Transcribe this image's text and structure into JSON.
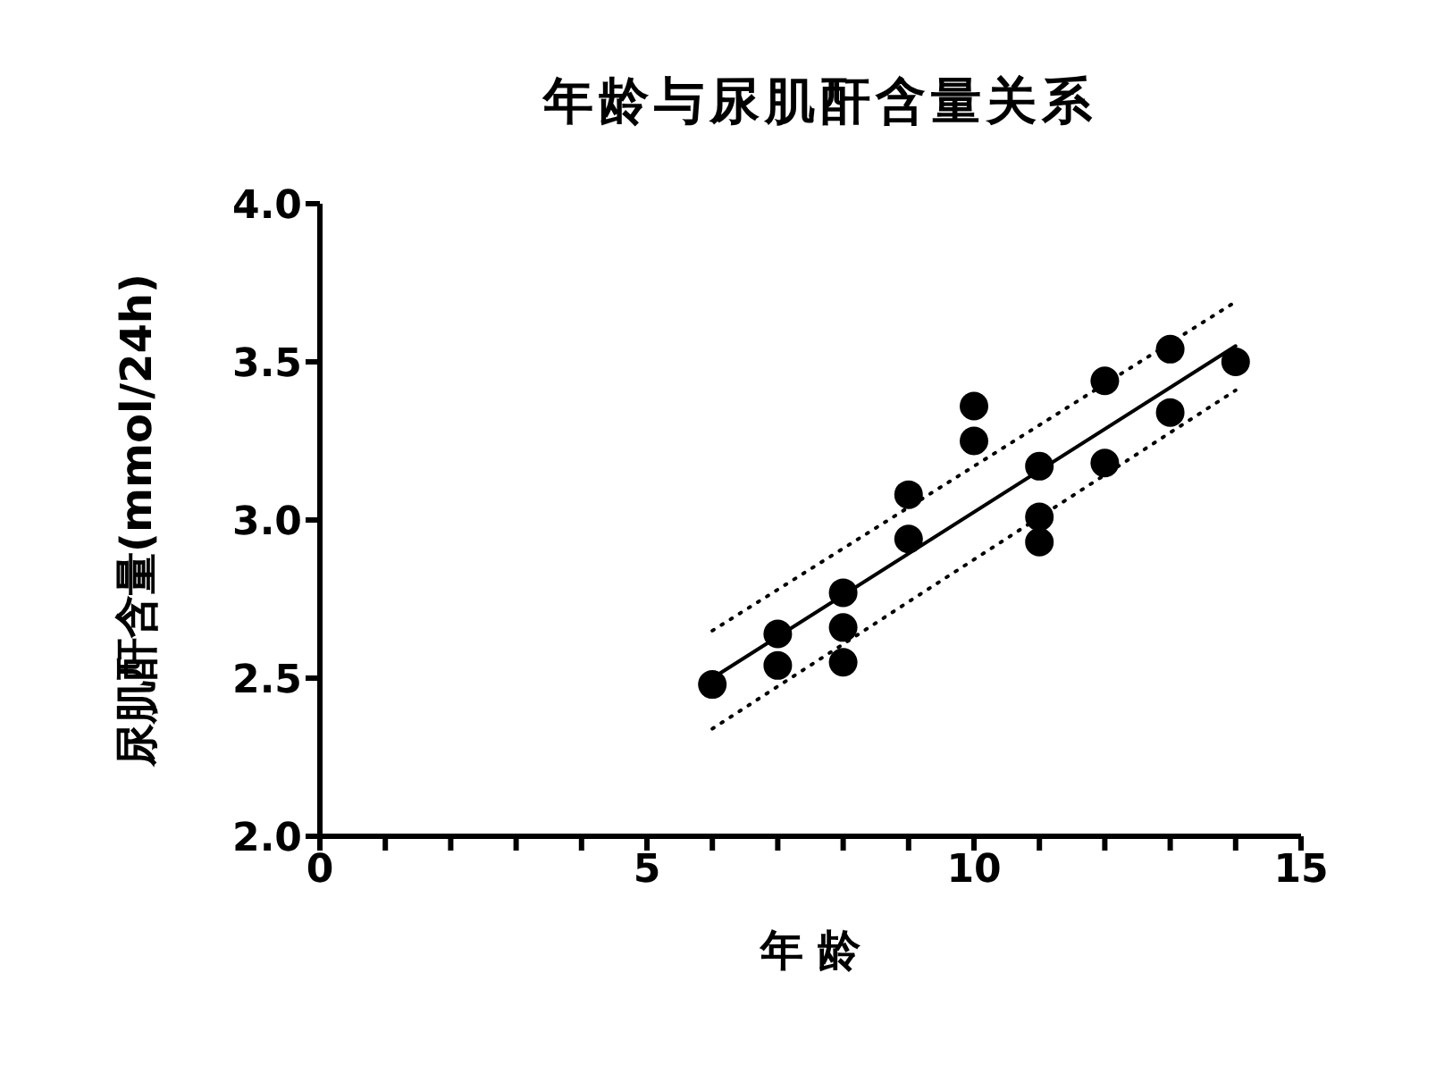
{
  "chart_data": {
    "type": "scatter",
    "title": "年龄与尿肌酐含量关系",
    "xlabel": "年 龄",
    "ylabel": "尿肌酐含量(mmol/24h)",
    "xlim": [
      0,
      15
    ],
    "xticks": [
      0,
      {
        "value": 1,
        "label": null
      },
      {
        "value": 2,
        "label": null
      },
      {
        "value": 3,
        "label": null
      },
      {
        "value": 4,
        "label": null
      },
      5,
      {
        "value": 6,
        "label": null
      },
      {
        "value": 7,
        "label": null
      },
      {
        "value": 8,
        "label": null
      },
      {
        "value": 9,
        "label": null
      },
      10,
      {
        "value": 11,
        "label": null
      },
      {
        "value": 12,
        "label": null
      },
      {
        "value": 13,
        "label": null
      },
      {
        "value": 14,
        "label": null
      },
      15
    ],
    "ylim": [
      2,
      4
    ],
    "yticks": [
      {
        "value": 2,
        "label": "2.0"
      },
      {
        "value": 2.5,
        "label": "2.5"
      },
      {
        "value": 3,
        "label": "3.0"
      },
      {
        "value": 3.5,
        "label": "3.5"
      },
      {
        "value": 4,
        "label": "4.0"
      }
    ],
    "grid": false,
    "legend": false,
    "marker": "circle",
    "series": [
      {
        "color": "#000000",
        "x": [
          6,
          7,
          7,
          8,
          8,
          8,
          9,
          9,
          10,
          10,
          11,
          11,
          11,
          12,
          12,
          13,
          13,
          14
        ],
        "values": [
          2.48,
          2.64,
          2.54,
          2.77,
          2.66,
          2.55,
          3.08,
          2.94,
          3.36,
          3.25,
          3.17,
          3.01,
          2.93,
          3.44,
          3.18,
          3.54,
          3.34,
          3.5
        ]
      },
      {
        "type": "line",
        "color": "#000000",
        "line_style": "solid",
        "marker": "none",
        "x": [
          6,
          14
        ],
        "values": [
          2.5,
          3.55
        ]
      },
      {
        "type": "line",
        "color": "#000000",
        "line_style": "dotted",
        "marker": "none",
        "x": [
          6,
          14
        ],
        "values": [
          2.65,
          3.69
        ]
      },
      {
        "type": "line",
        "color": "#000000",
        "line_style": "dotted",
        "marker": "none",
        "x": [
          6,
          14
        ],
        "values": [
          2.34,
          3.41
        ]
      }
    ]
  }
}
